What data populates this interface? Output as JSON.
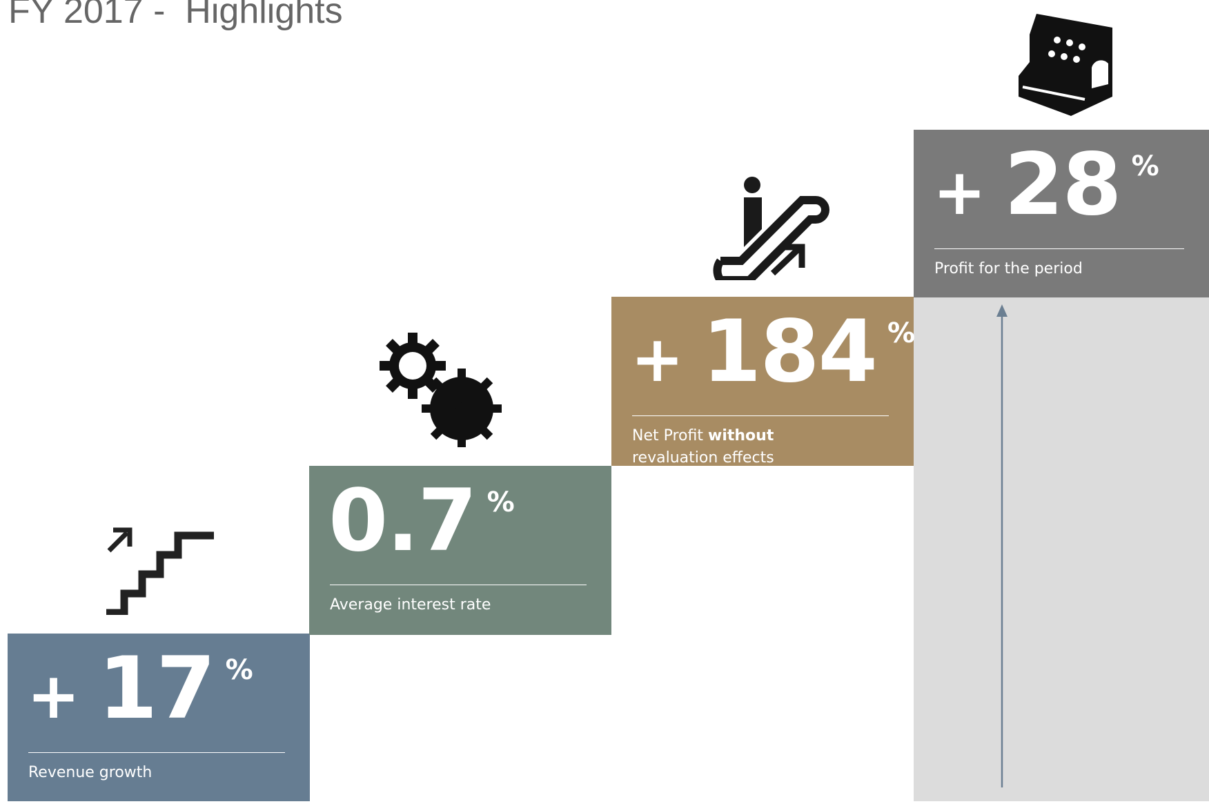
{
  "title": "FY 2017 -  Highlights",
  "cards": [
    {
      "sign": "+",
      "value": "17",
      "unit": "%",
      "label": "Revenue growth"
    },
    {
      "value": "0.7",
      "unit": "%",
      "label": "Average interest rate"
    },
    {
      "sign": "+",
      "value": "184",
      "unit": "%",
      "label_parts": [
        "Net Profit",
        "without",
        "revaluation effects"
      ]
    },
    {
      "sign": "+",
      "value": "28",
      "unit": "%",
      "label": "Profit for the period"
    }
  ]
}
